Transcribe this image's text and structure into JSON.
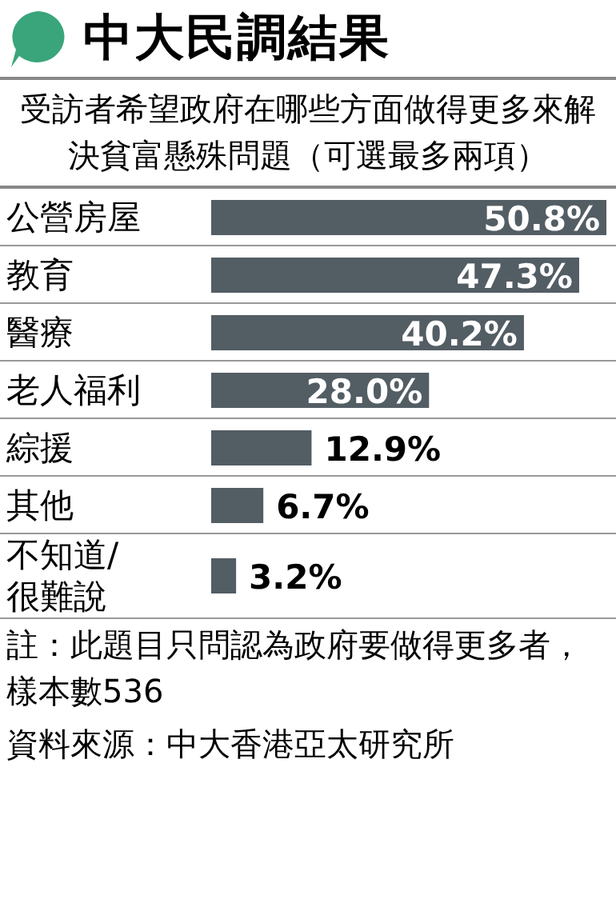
{
  "chart_data": {
    "type": "bar",
    "orientation": "horizontal",
    "title": "中大民調結果",
    "subtitle": "受訪者希望政府在哪些方面做得更多來解決貧富懸殊問題（可選最多兩項）",
    "categories": [
      "公營房屋",
      "教育",
      "醫療",
      "老人福利",
      "綜援",
      "其他",
      "不知道/很難說"
    ],
    "values": [
      50.8,
      47.3,
      40.2,
      28.0,
      12.9,
      6.7,
      3.2
    ],
    "value_labels": [
      "50.8%",
      "47.3%",
      "40.2%",
      "28.0%",
      "12.9%",
      "6.7%",
      "3.2%"
    ],
    "color": "#535d64",
    "annotations": [
      "註：此題目只問認為政府要做得更多者，樣本數536",
      "資料來源：中大香港亞太研究所"
    ]
  }
}
